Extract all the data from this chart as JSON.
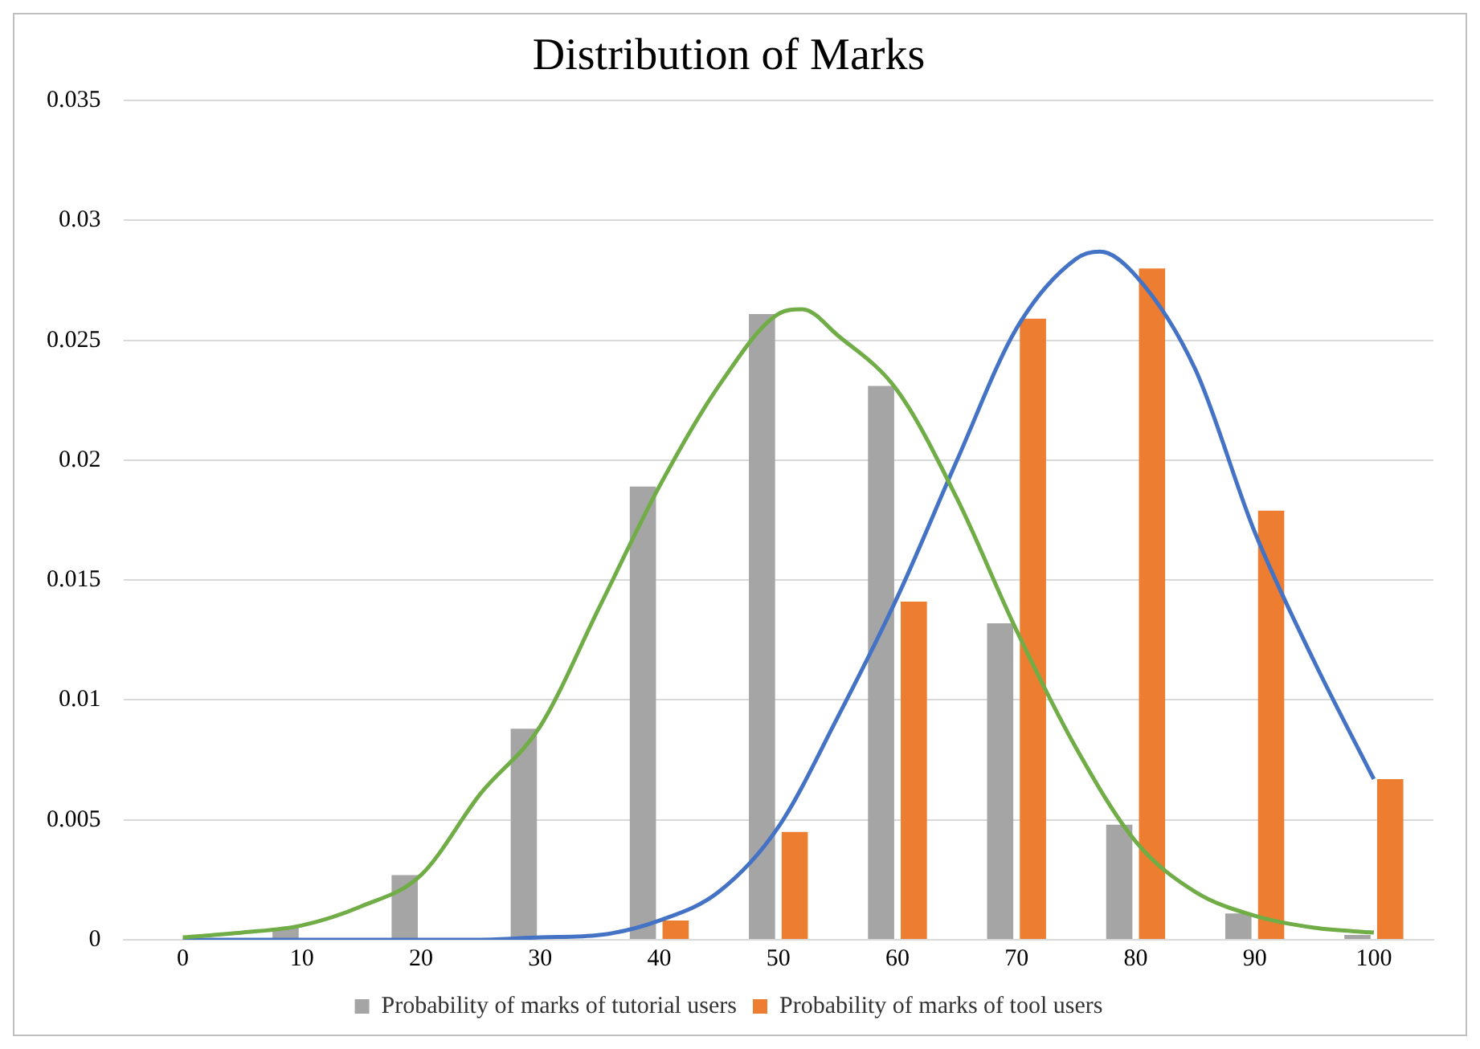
{
  "chart_data": {
    "type": "bar",
    "title": "Distribution of Marks",
    "x": [
      0,
      10,
      20,
      30,
      40,
      50,
      60,
      70,
      80,
      90,
      100
    ],
    "xlim": [
      -5,
      105
    ],
    "xticks": [
      0,
      10,
      20,
      30,
      40,
      50,
      60,
      70,
      80,
      90,
      100
    ],
    "ylim": [
      0,
      0.035
    ],
    "yticks": [
      0,
      0.005,
      0.01,
      0.015,
      0.02,
      0.025,
      0.03,
      0.035
    ],
    "grid": "y",
    "legend": "bottom",
    "series": [
      {
        "name": "Probability of marks of tutorial users",
        "color": "#a5a5a5",
        "values": [
          0,
          0.0005,
          0.0027,
          0.0088,
          0.0189,
          0.0261,
          0.0231,
          0.0132,
          0.0048,
          0.0011,
          0.0002
        ]
      },
      {
        "name": "Probability of marks of tool users",
        "color": "#ed7d31",
        "values": [
          0,
          0,
          0,
          0,
          0.0008,
          0.0045,
          0.0141,
          0.0259,
          0.028,
          0.0179,
          0.0067
        ]
      },
      {
        "type": "line",
        "color": "#70ad47",
        "x": [
          0,
          5,
          10,
          15,
          20,
          25,
          30,
          35,
          40,
          45,
          50,
          52,
          55,
          60,
          65,
          70,
          75,
          80,
          85,
          90,
          95,
          100
        ],
        "values": [
          0.0001,
          0.0003,
          0.0006,
          0.0014,
          0.0027,
          0.0061,
          0.0089,
          0.0139,
          0.0189,
          0.0231,
          0.0261,
          0.0263,
          0.0252,
          0.0229,
          0.0184,
          0.0129,
          0.008,
          0.0041,
          0.002,
          0.001,
          0.0005,
          0.0003
        ]
      },
      {
        "type": "line",
        "color": "#4472c4",
        "x": [
          0,
          10,
          20,
          25,
          30,
          35,
          40,
          45,
          50,
          55,
          60,
          65,
          70,
          75,
          77,
          80,
          85,
          90,
          95,
          100
        ],
        "values": [
          0,
          0,
          0,
          0,
          0.0001,
          0.0002,
          0.0008,
          0.002,
          0.0047,
          0.0093,
          0.0143,
          0.02,
          0.0255,
          0.0284,
          0.0287,
          0.0277,
          0.0238,
          0.017,
          0.0116,
          0.0067
        ]
      }
    ]
  }
}
